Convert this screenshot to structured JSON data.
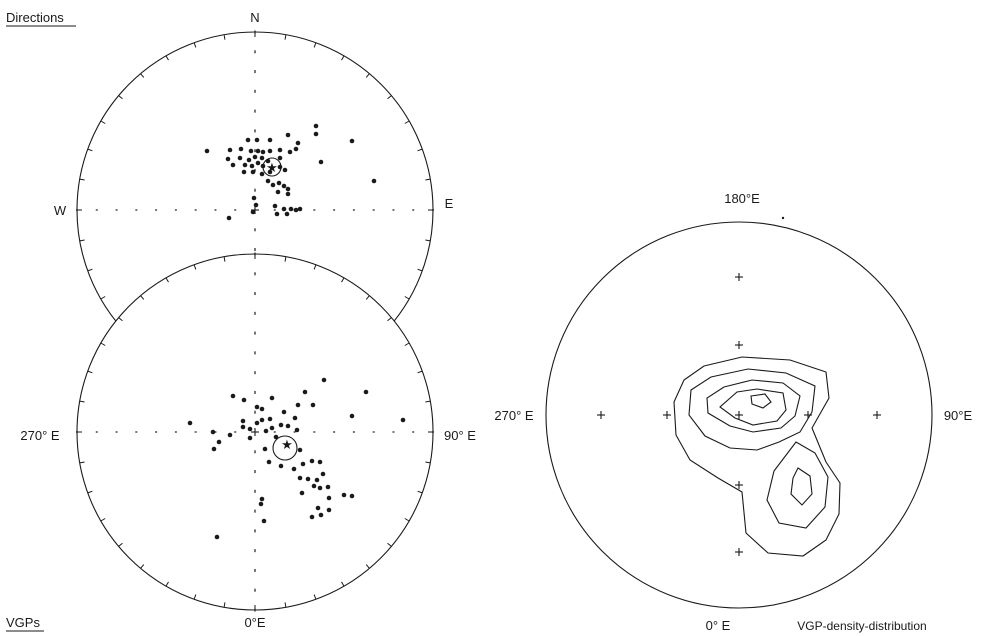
{
  "directions_panel": {
    "title": "Directions",
    "labels": {
      "north": "N",
      "west": "W",
      "east": "E"
    }
  },
  "vgp_panel": {
    "title": "VGPs",
    "labels": {
      "left": "270° E",
      "right": "90° E",
      "bottom": "0°E"
    }
  },
  "density_panel": {
    "title": "VGP-density-distribution",
    "labels": {
      "top": "180°E",
      "left": "270° E",
      "right": "90°E",
      "bottom": "0° E"
    }
  },
  "colors": {
    "ink": "#1a1a1a",
    "background": "#ffffff"
  }
}
